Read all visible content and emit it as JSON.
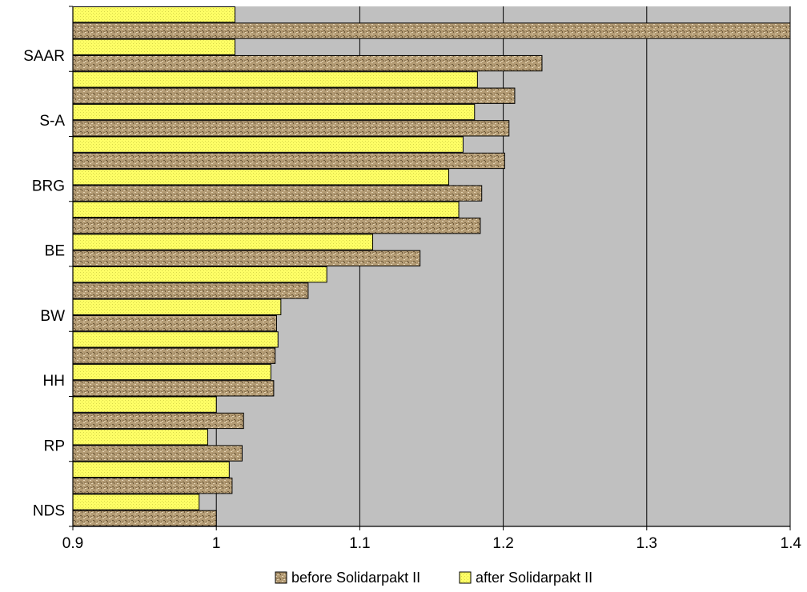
{
  "chart_data": {
    "type": "bar",
    "orientation": "horizontal",
    "title": "",
    "xlabel": "",
    "ylabel": "",
    "xlim": [
      0.9,
      1.4
    ],
    "x_ticks": [
      "0.9",
      "1",
      "1.1",
      "1.2",
      "1.3",
      "1.4"
    ],
    "grid": "vertical lines",
    "legend": "bottom",
    "y_tick_labels": [
      "SAAR",
      "S-A",
      "BRG",
      "BE",
      "BW",
      "HH",
      "RP",
      "NDS"
    ],
    "series": [
      {
        "name": "before Solidarpakt II",
        "color": "#b39b74",
        "values": [
          1.4,
          1.227,
          1.208,
          1.204,
          1.201,
          1.185,
          1.184,
          1.142,
          1.064,
          1.042,
          1.041,
          1.04,
          1.019,
          1.018,
          1.011,
          1.0
        ]
      },
      {
        "name": "after Solidarpakt II",
        "color": "#ffff66",
        "values": [
          1.013,
          1.013,
          1.182,
          1.18,
          1.172,
          1.162,
          1.169,
          1.109,
          1.077,
          1.045,
          1.043,
          1.038,
          1.0,
          0.994,
          1.009,
          0.988
        ]
      }
    ]
  }
}
